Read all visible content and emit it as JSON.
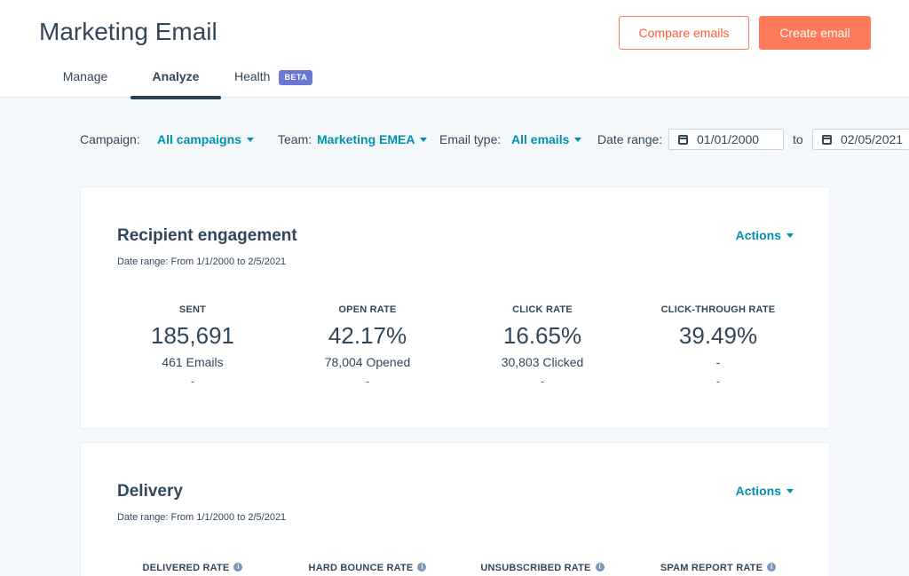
{
  "header": {
    "title": "Marketing Email",
    "compare_label": "Compare emails",
    "create_label": "Create email",
    "tabs": [
      {
        "label": "Manage"
      },
      {
        "label": "Analyze"
      },
      {
        "label": "Health",
        "badge": "BETA"
      }
    ]
  },
  "filters": {
    "campaign_label": "Campaign:",
    "campaign_value": "All campaigns",
    "team_label": "Team:",
    "team_value": "Marketing EMEA",
    "email_type_label": "Email type:",
    "email_type_value": "All emails",
    "date_range_label": "Date range:",
    "date_from": "01/01/2000",
    "date_to_label": "to",
    "date_to": "02/05/2021"
  },
  "engagement": {
    "title": "Recipient engagement",
    "subtitle": "Date range: From 1/1/2000 to 2/5/2021",
    "actions_label": "Actions",
    "metrics": [
      {
        "label": "SENT",
        "value": "185,691",
        "sub": "461 Emails",
        "dash": "-"
      },
      {
        "label": "OPEN RATE",
        "value": "42.17%",
        "sub": "78,004 Opened",
        "dash": "-"
      },
      {
        "label": "CLICK RATE",
        "value": "16.65%",
        "sub": "30,803 Clicked",
        "dash": "-"
      },
      {
        "label": "CLICK-THROUGH RATE",
        "value": "39.49%",
        "sub": "-",
        "dash": "-"
      }
    ]
  },
  "delivery": {
    "title": "Delivery",
    "subtitle": "Date range: From 1/1/2000 to 2/5/2021",
    "actions_label": "Actions",
    "metrics": [
      {
        "label": "DELIVERED RATE"
      },
      {
        "label": "HARD BOUNCE RATE"
      },
      {
        "label": "UNSUBSCRIBED RATE"
      },
      {
        "label": "SPAM REPORT RATE"
      }
    ]
  },
  "colors": {
    "accent": "#0091ae",
    "primary_button": "#ff7a59",
    "badge": "#6a78d1",
    "text": "#33475b"
  },
  "icons": [
    "calendar-icon",
    "caret-down-icon",
    "info-icon"
  ]
}
